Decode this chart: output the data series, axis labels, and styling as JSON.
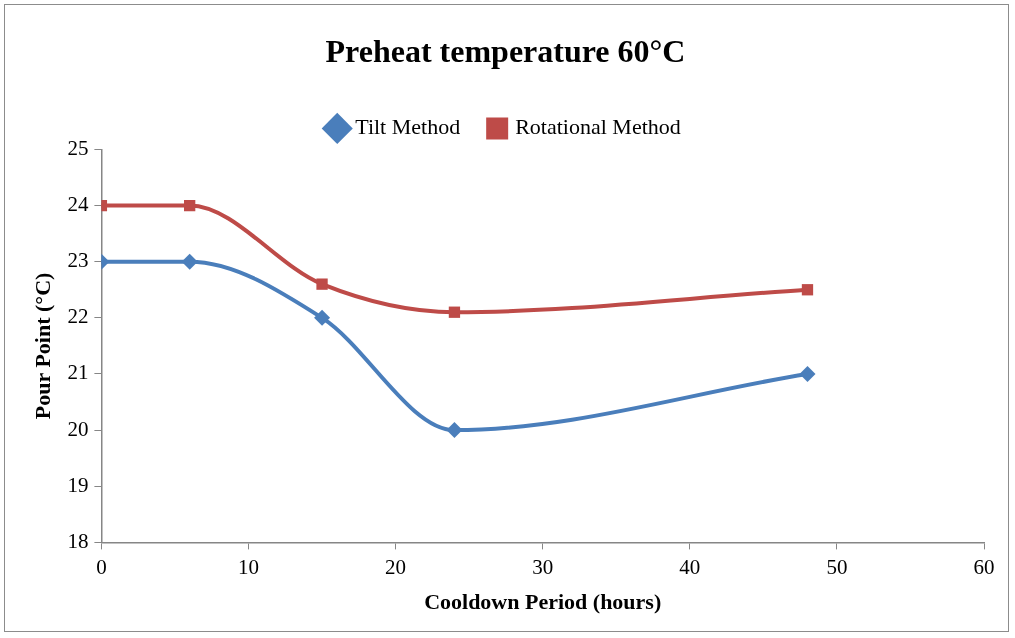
{
  "chart_data": {
    "type": "line",
    "title": "Preheat temperature 60°C",
    "xlabel": "Cooldown Period (hours)",
    "ylabel": "Pour Point (°C)",
    "xlim": [
      0,
      60
    ],
    "xticks": [
      0,
      10,
      20,
      30,
      40,
      50,
      60
    ],
    "ylim": [
      18,
      25
    ],
    "yticks": [
      18,
      19,
      20,
      21,
      22,
      23,
      24,
      25
    ],
    "grid": false,
    "legend": "top",
    "series": [
      {
        "name": "Tilt Method",
        "color": "#4a7ebb",
        "marker": "diamond",
        "x": [
          0,
          6,
          15,
          24,
          48
        ],
        "values": [
          23,
          23,
          22,
          20,
          21
        ]
      },
      {
        "name": "Rotational Method",
        "color": "#be4b48",
        "marker": "square",
        "x": [
          0,
          6,
          15,
          24,
          48
        ],
        "values": [
          24,
          24,
          22.6,
          22.1,
          22.5
        ]
      }
    ]
  }
}
